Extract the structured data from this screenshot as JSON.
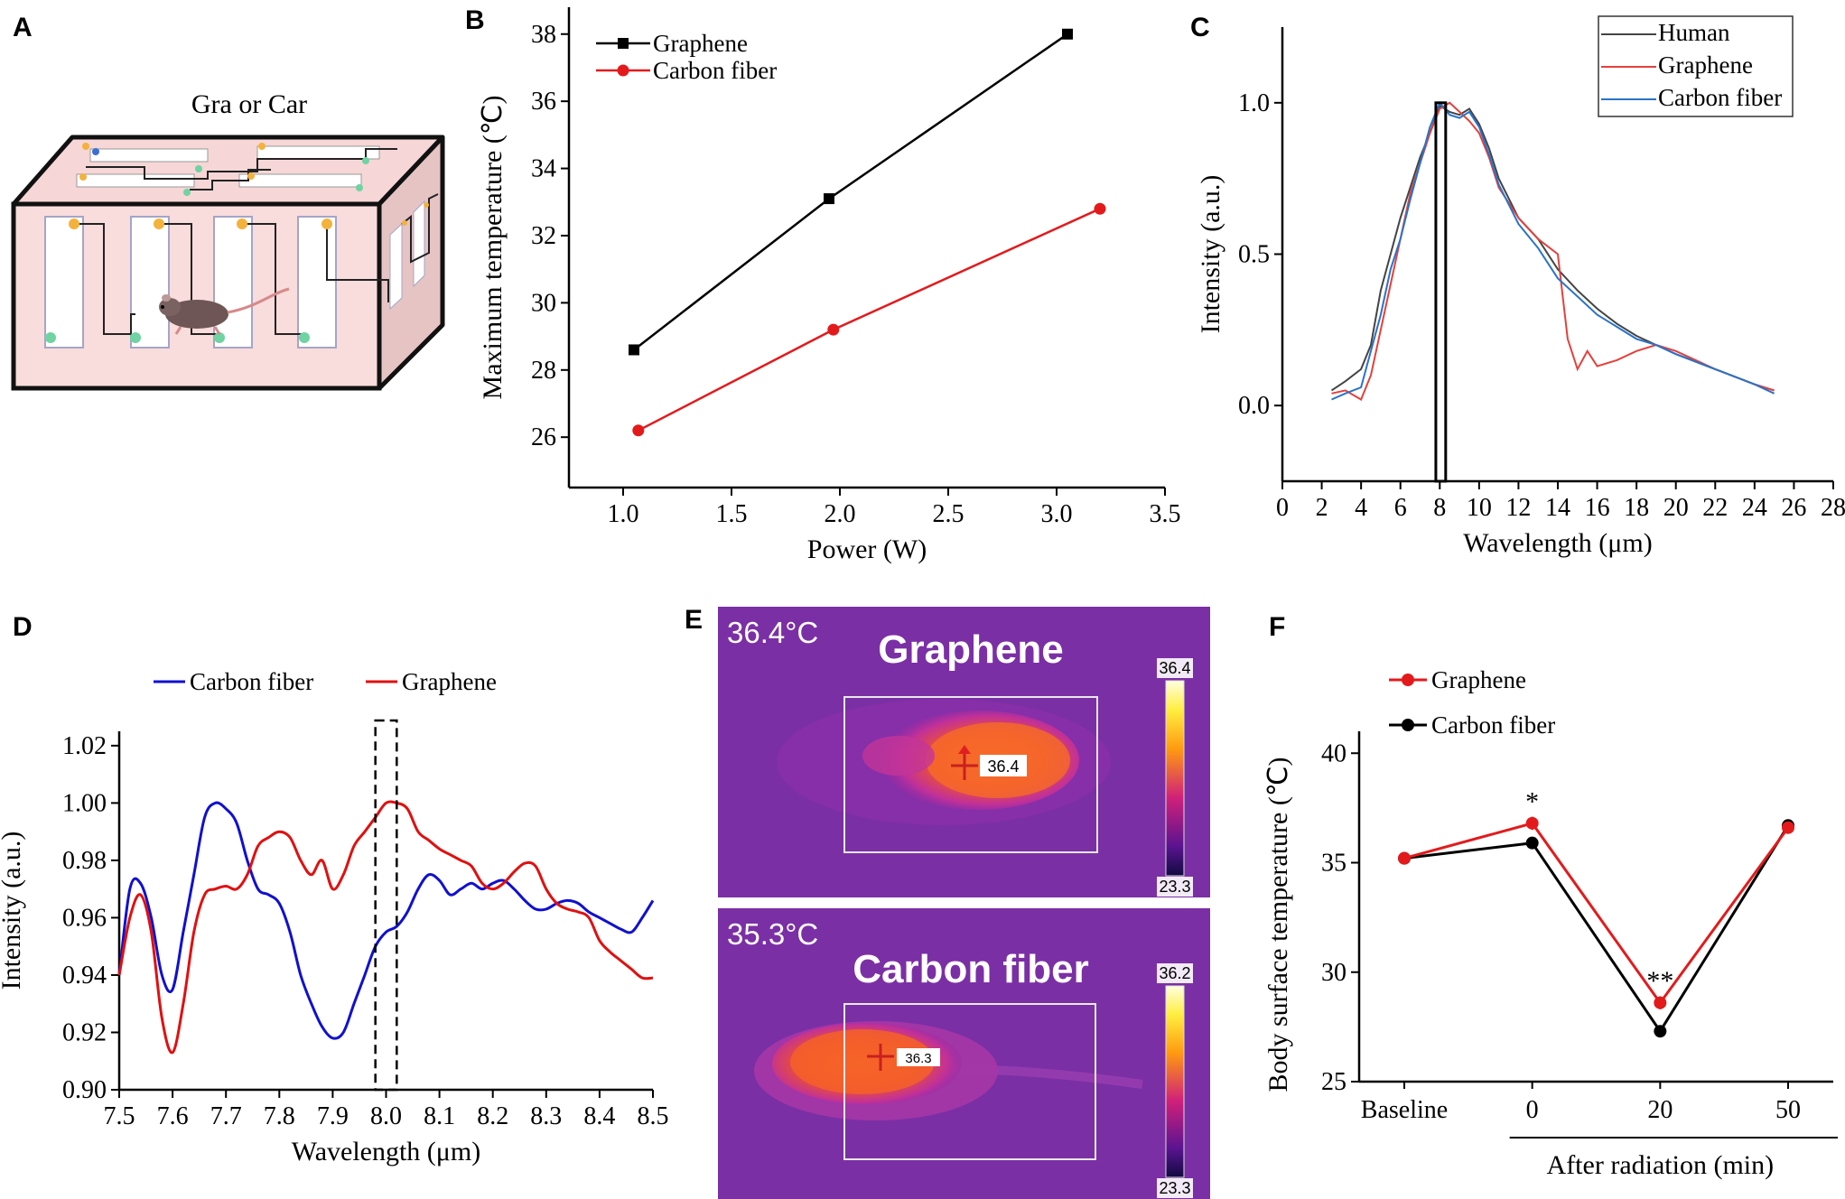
{
  "panels": {
    "A": {
      "letter": "A",
      "title": "Gra or Car"
    },
    "B": {
      "letter": "B"
    },
    "C": {
      "letter": "C"
    },
    "D": {
      "letter": "D"
    },
    "E": {
      "letter": "E"
    },
    "F": {
      "letter": "F"
    }
  },
  "chart_data": [
    {
      "id": "B",
      "type": "line",
      "xlabel": "Power (W)",
      "ylabel": "Maximum temperature (℃)",
      "xlim": [
        0.75,
        3.5
      ],
      "ylim": [
        24.5,
        38.8
      ],
      "xticks": [
        1.0,
        1.5,
        2.0,
        2.5,
        3.0,
        3.5
      ],
      "xtick_labels": [
        "1.0",
        "1.5",
        "2.0",
        "2.5",
        "3.0",
        "3.5"
      ],
      "yticks": [
        26,
        28,
        30,
        32,
        34,
        36,
        38
      ],
      "ytick_labels": [
        "26",
        "28",
        "30",
        "32",
        "34",
        "36",
        "38"
      ],
      "legend_position": "top-left",
      "series": [
        {
          "name": "Graphene",
          "color": "#000000",
          "marker": "square",
          "x": [
            1.05,
            1.95,
            3.05
          ],
          "y": [
            28.6,
            33.1,
            38.0
          ]
        },
        {
          "name": "Carbon fiber",
          "color": "#e31a1c",
          "marker": "circle",
          "x": [
            1.07,
            1.97,
            3.2
          ],
          "y": [
            26.2,
            29.2,
            32.8
          ]
        }
      ]
    },
    {
      "id": "C",
      "type": "line",
      "xlabel": "Wavelength (μm)",
      "ylabel": "Intensity (a.u.)",
      "xlim": [
        0,
        28
      ],
      "ylim": [
        -0.25,
        1.25
      ],
      "xticks": [
        0,
        2,
        4,
        6,
        8,
        10,
        12,
        14,
        16,
        18,
        20,
        22,
        24,
        26,
        28
      ],
      "xtick_labels": [
        "0",
        "2",
        "4",
        "6",
        "8",
        "10",
        "12",
        "14",
        "16",
        "18",
        "20",
        "22",
        "24",
        "26",
        "28"
      ],
      "yticks": [
        0.0,
        0.5,
        1.0
      ],
      "ytick_labels": [
        "0.0",
        "0.5",
        "1.0"
      ],
      "legend_position": "top-right",
      "highlight_box": {
        "x": [
          7.8,
          8.3
        ],
        "y": [
          -0.25,
          1.0
        ]
      },
      "series": [
        {
          "name": "Human",
          "color": "#444444",
          "x": [
            2.5,
            3.2,
            4,
            4.5,
            5,
            5.5,
            6,
            6.5,
            7,
            7.5,
            8,
            8.5,
            9,
            9.5,
            10,
            10.5,
            11,
            12,
            13,
            14,
            15,
            16,
            17,
            18,
            19,
            20,
            22,
            24,
            25
          ],
          "y": [
            0.05,
            0.08,
            0.12,
            0.2,
            0.38,
            0.5,
            0.62,
            0.72,
            0.82,
            0.9,
            0.99,
            0.97,
            0.96,
            0.98,
            0.93,
            0.85,
            0.75,
            0.62,
            0.55,
            0.45,
            0.38,
            0.32,
            0.27,
            0.23,
            0.2,
            0.17,
            0.12,
            0.07,
            0.05
          ]
        },
        {
          "name": "Graphene",
          "color": "#e3413d",
          "x": [
            2.5,
            3.2,
            4,
            4.5,
            5,
            5.5,
            6,
            6.5,
            7,
            7.5,
            8,
            8.5,
            9,
            9.5,
            10,
            10.5,
            11,
            12,
            13,
            14,
            14.5,
            15,
            15.5,
            16,
            17,
            18,
            19,
            20,
            22,
            24,
            25
          ],
          "y": [
            0.04,
            0.05,
            0.02,
            0.1,
            0.25,
            0.4,
            0.55,
            0.7,
            0.8,
            0.9,
            0.98,
            1.0,
            0.97,
            0.94,
            0.9,
            0.82,
            0.72,
            0.62,
            0.55,
            0.5,
            0.22,
            0.12,
            0.18,
            0.13,
            0.15,
            0.18,
            0.2,
            0.18,
            0.12,
            0.07,
            0.05
          ]
        },
        {
          "name": "Carbon fiber",
          "color": "#2a73c8",
          "x": [
            2.5,
            3.2,
            4,
            4.5,
            5,
            5.5,
            6,
            6.5,
            7,
            7.5,
            8,
            8.5,
            9,
            9.5,
            10,
            10.5,
            11,
            12,
            13,
            14,
            15,
            16,
            17,
            18,
            19,
            20,
            22,
            24,
            25
          ],
          "y": [
            0.02,
            0.04,
            0.06,
            0.18,
            0.3,
            0.45,
            0.55,
            0.68,
            0.8,
            0.92,
            1.0,
            0.96,
            0.95,
            0.97,
            0.92,
            0.83,
            0.73,
            0.6,
            0.52,
            0.42,
            0.36,
            0.3,
            0.26,
            0.22,
            0.2,
            0.17,
            0.12,
            0.07,
            0.04
          ]
        }
      ]
    },
    {
      "id": "D",
      "type": "line",
      "xlabel": "Wavelength (μm)",
      "ylabel": "Intensity (a.u.)",
      "xlim": [
        7.5,
        8.5
      ],
      "ylim": [
        0.9,
        1.025
      ],
      "xticks": [
        7.5,
        7.6,
        7.7,
        7.8,
        7.9,
        8.0,
        8.1,
        8.2,
        8.3,
        8.4,
        8.5
      ],
      "xtick_labels": [
        "7.5",
        "7.6",
        "7.7",
        "7.8",
        "7.9",
        "8.0",
        "8.1",
        "8.2",
        "8.3",
        "8.4",
        "8.5"
      ],
      "yticks": [
        0.9,
        0.92,
        0.94,
        0.96,
        0.98,
        1.0,
        1.02
      ],
      "ytick_labels": [
        "0.90",
        "0.92",
        "0.94",
        "0.96",
        "0.98",
        "1.00",
        "1.02"
      ],
      "legend_position": "top",
      "highlight_box": {
        "x": [
          7.98,
          8.02
        ],
        "y": [
          0.9,
          1.025
        ]
      },
      "series": [
        {
          "name": "Carbon fiber",
          "color": "#1010d0",
          "x": [
            7.5,
            7.52,
            7.54,
            7.56,
            7.58,
            7.6,
            7.62,
            7.64,
            7.66,
            7.68,
            7.7,
            7.72,
            7.74,
            7.76,
            7.78,
            7.8,
            7.82,
            7.84,
            7.86,
            7.88,
            7.9,
            7.92,
            7.94,
            7.96,
            7.98,
            8.0,
            8.02,
            8.04,
            8.06,
            8.08,
            8.1,
            8.12,
            8.14,
            8.16,
            8.18,
            8.2,
            8.22,
            8.24,
            8.26,
            8.28,
            8.3,
            8.32,
            8.34,
            8.36,
            8.38,
            8.4,
            8.42,
            8.44,
            8.46,
            8.48,
            8.5
          ],
          "y": [
            0.94,
            0.97,
            0.972,
            0.96,
            0.94,
            0.935,
            0.955,
            0.975,
            0.995,
            1.0,
            0.998,
            0.993,
            0.98,
            0.97,
            0.968,
            0.965,
            0.955,
            0.94,
            0.93,
            0.922,
            0.918,
            0.92,
            0.93,
            0.94,
            0.95,
            0.955,
            0.957,
            0.962,
            0.97,
            0.975,
            0.973,
            0.968,
            0.97,
            0.972,
            0.97,
            0.972,
            0.973,
            0.97,
            0.966,
            0.963,
            0.963,
            0.965,
            0.966,
            0.965,
            0.962,
            0.96,
            0.958,
            0.956,
            0.955,
            0.96,
            0.966
          ]
        },
        {
          "name": "Graphene",
          "color": "#e01010",
          "x": [
            7.5,
            7.52,
            7.54,
            7.56,
            7.58,
            7.6,
            7.62,
            7.64,
            7.66,
            7.68,
            7.7,
            7.72,
            7.74,
            7.76,
            7.78,
            7.8,
            7.82,
            7.84,
            7.86,
            7.88,
            7.9,
            7.92,
            7.94,
            7.96,
            7.98,
            8.0,
            8.02,
            8.04,
            8.06,
            8.08,
            8.1,
            8.12,
            8.14,
            8.16,
            8.18,
            8.2,
            8.22,
            8.24,
            8.26,
            8.28,
            8.3,
            8.32,
            8.34,
            8.36,
            8.38,
            8.4,
            8.42,
            8.44,
            8.46,
            8.48,
            8.5
          ],
          "y": [
            0.94,
            0.96,
            0.968,
            0.955,
            0.925,
            0.913,
            0.93,
            0.955,
            0.968,
            0.97,
            0.971,
            0.97,
            0.975,
            0.985,
            0.988,
            0.99,
            0.988,
            0.98,
            0.975,
            0.98,
            0.97,
            0.975,
            0.985,
            0.99,
            0.995,
            1.0,
            1.0,
            0.998,
            0.99,
            0.987,
            0.984,
            0.982,
            0.98,
            0.978,
            0.972,
            0.97,
            0.972,
            0.976,
            0.979,
            0.978,
            0.97,
            0.965,
            0.963,
            0.962,
            0.96,
            0.952,
            0.948,
            0.945,
            0.942,
            0.939,
            0.939
          ]
        }
      ]
    },
    {
      "id": "F",
      "type": "line",
      "ylabel": "Body surface temperature (℃)",
      "xgroup_label": "After radiation (min)",
      "categories": [
        "Baseline",
        "0",
        "20",
        "50"
      ],
      "ylim": [
        25,
        41
      ],
      "yticks": [
        25,
        30,
        35,
        40
      ],
      "ytick_labels": [
        "25",
        "30",
        "35",
        "40"
      ],
      "legend_position": "top-left",
      "annotations": [
        {
          "category": "0",
          "y": 37.4,
          "text": "*"
        },
        {
          "category": "20",
          "y": 29.2,
          "text": "**"
        }
      ],
      "series": [
        {
          "name": "Graphene",
          "color": "#e31a1c",
          "values": [
            35.2,
            36.8,
            28.6,
            36.6
          ],
          "errors": [
            0.2,
            0.3,
            0.3,
            0.2
          ]
        },
        {
          "name": "Carbon fiber",
          "color": "#000000",
          "values": [
            35.2,
            35.9,
            27.3,
            36.7
          ],
          "errors": [
            0.2,
            0.2,
            0.2,
            0.2
          ]
        }
      ]
    }
  ],
  "thermal": {
    "top": {
      "temp": "36.4°C",
      "title": "Graphene",
      "scale_max": "36.4",
      "scale_min": "23.3",
      "spot": "36.4"
    },
    "bottom": {
      "temp": "35.3°C",
      "title": "Carbon fiber",
      "scale_max": "36.2",
      "scale_min": "23.3",
      "spot": "36.3"
    }
  }
}
